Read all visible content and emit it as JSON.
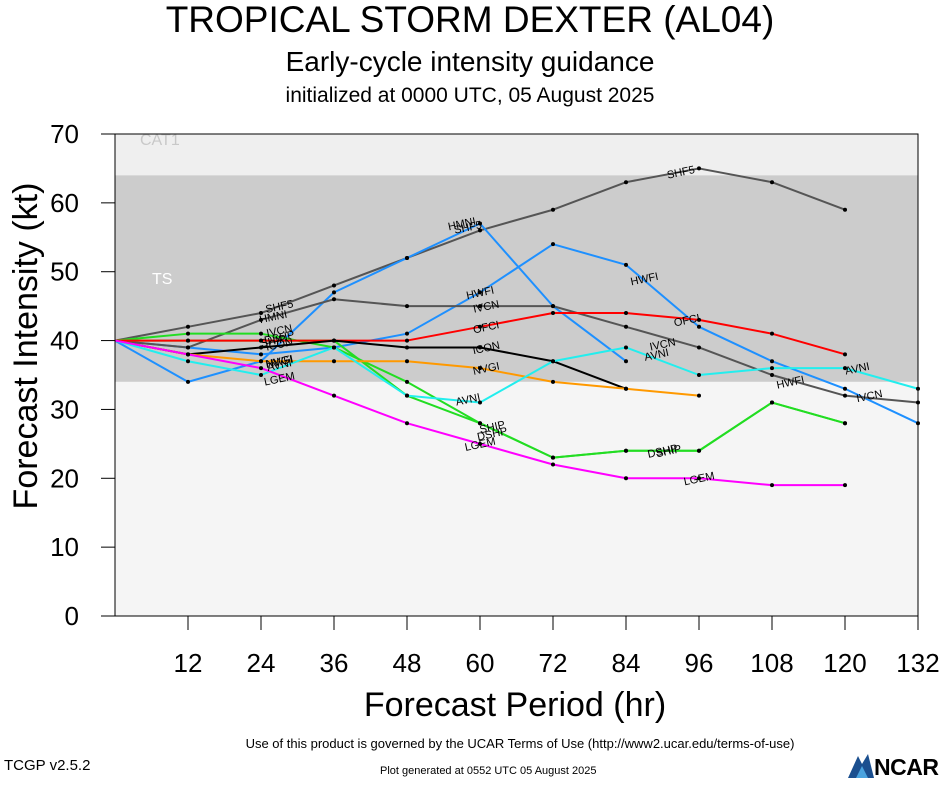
{
  "header": {
    "title": "TROPICAL STORM DEXTER (AL04)",
    "subtitle": "Early-cycle intensity guidance",
    "init": "initialized at 0000 UTC, 05 August 2025"
  },
  "footer": {
    "terms": "Use of this product is governed by the UCAR Terms of Use (http://www2.ucar.edu/terms-of-use)",
    "version": "TCGP v2.5.2",
    "generated": "Plot generated at 0552 UTC   05 August 2025",
    "logo_text": "NCAR"
  },
  "chart_data": {
    "type": "line",
    "title": "TROPICAL STORM DEXTER (AL04)",
    "xlabel": "Forecast Period (hr)",
    "ylabel": "Forecast Intensity (kt)",
    "xlim": [
      0,
      132
    ],
    "ylim": [
      0,
      70
    ],
    "xticks": [
      12,
      24,
      36,
      48,
      60,
      72,
      84,
      96,
      108,
      120,
      132
    ],
    "yticks": [
      0,
      10,
      20,
      30,
      40,
      50,
      60,
      70
    ],
    "grid": false,
    "bands": [
      {
        "label": "CAT1",
        "from": 64,
        "to": 70,
        "color": "#efefef"
      },
      {
        "label": "TS",
        "from": 34,
        "to": 64,
        "color": "#cccccc"
      },
      {
        "label": "",
        "from": 0,
        "to": 34,
        "color": "#f5f5f5"
      }
    ],
    "series": [
      {
        "name": "SHF5",
        "color": "#555555",
        "points": [
          [
            0,
            40
          ],
          [
            12,
            42
          ],
          [
            24,
            44
          ],
          [
            36,
            48
          ],
          [
            48,
            52
          ],
          [
            60,
            56
          ],
          [
            72,
            59
          ],
          [
            84,
            63
          ],
          [
            96,
            65
          ],
          [
            108,
            63
          ],
          [
            120,
            59
          ]
        ],
        "labels": [
          [
            27,
            45
          ],
          [
            58,
            56.5
          ],
          [
            93,
            64.5
          ]
        ]
      },
      {
        "name": "HMNI",
        "color": "#1e90ff",
        "points": [
          [
            0,
            40
          ],
          [
            12,
            34
          ],
          [
            24,
            37
          ],
          [
            36,
            47
          ],
          [
            48,
            52
          ],
          [
            60,
            57
          ],
          [
            72,
            45
          ],
          [
            84,
            37
          ]
        ],
        "labels": [
          [
            26,
            43.5
          ],
          [
            57,
            57
          ]
        ]
      },
      {
        "name": "HWFI",
        "color": "#1e90ff",
        "points": [
          [
            0,
            40
          ],
          [
            12,
            39
          ],
          [
            24,
            38
          ],
          [
            36,
            39
          ],
          [
            48,
            41
          ],
          [
            60,
            47
          ],
          [
            72,
            54
          ],
          [
            84,
            51
          ],
          [
            96,
            42
          ],
          [
            108,
            37
          ],
          [
            120,
            33
          ],
          [
            132,
            28
          ]
        ],
        "labels": [
          [
            27,
            37
          ],
          [
            60,
            47
          ],
          [
            87,
            49
          ],
          [
            111,
            34
          ]
        ]
      },
      {
        "name": "IVCN",
        "color": "#555555",
        "points": [
          [
            0,
            40
          ],
          [
            12,
            39
          ],
          [
            24,
            43
          ],
          [
            36,
            46
          ],
          [
            48,
            45
          ],
          [
            60,
            45
          ],
          [
            72,
            45
          ],
          [
            84,
            42
          ],
          [
            96,
            39
          ],
          [
            108,
            35
          ],
          [
            120,
            32
          ],
          [
            132,
            31
          ]
        ],
        "labels": [
          [
            27,
            41.5
          ],
          [
            61,
            45
          ],
          [
            90,
            39.5
          ],
          [
            124,
            32
          ]
        ]
      },
      {
        "name": "DSHP",
        "color": "#22dd22",
        "points": [
          [
            0,
            40
          ],
          [
            12,
            41
          ],
          [
            24,
            41
          ],
          [
            36,
            39
          ],
          [
            48,
            34
          ],
          [
            60,
            28
          ],
          [
            72,
            23
          ],
          [
            84,
            24
          ],
          [
            96,
            24
          ],
          [
            108,
            31
          ],
          [
            120,
            28
          ]
        ],
        "labels": [
          [
            27,
            40.5
          ],
          [
            62,
            26.5
          ],
          [
            90,
            24
          ]
        ]
      },
      {
        "name": "SHIP",
        "color": "#22dd22",
        "points": [
          [
            0,
            40
          ],
          [
            12,
            40
          ],
          [
            24,
            40
          ],
          [
            36,
            40
          ],
          [
            48,
            32
          ],
          [
            60,
            28
          ],
          [
            72,
            23
          ],
          [
            84,
            24
          ],
          [
            96,
            24
          ],
          [
            108,
            31
          ],
          [
            120,
            28
          ]
        ],
        "labels": [
          [
            26,
            40
          ],
          [
            62,
            27.5
          ],
          [
            91,
            24
          ]
        ]
      },
      {
        "name": "OFCI",
        "color": "#ff0000",
        "points": [
          [
            0,
            40
          ],
          [
            12,
            40
          ],
          [
            24,
            40
          ],
          [
            36,
            40
          ],
          [
            48,
            40
          ],
          [
            60,
            42
          ],
          [
            72,
            44
          ],
          [
            84,
            44
          ],
          [
            96,
            43
          ],
          [
            108,
            41
          ],
          [
            120,
            38
          ]
        ],
        "labels": [
          [
            61,
            42
          ],
          [
            94,
            43
          ]
        ]
      },
      {
        "name": "ICON",
        "color": "#000000",
        "points": [
          [
            0,
            40
          ],
          [
            12,
            38
          ],
          [
            24,
            39
          ],
          [
            36,
            40
          ],
          [
            48,
            39
          ],
          [
            60,
            39
          ],
          [
            72,
            37
          ],
          [
            84,
            33
          ]
        ],
        "labels": [
          [
            27,
            39.5
          ],
          [
            61,
            39
          ]
        ]
      },
      {
        "name": "NVGI",
        "color": "#ff9900",
        "points": [
          [
            0,
            40
          ],
          [
            12,
            38
          ],
          [
            24,
            37
          ],
          [
            36,
            37
          ],
          [
            48,
            37
          ],
          [
            60,
            36
          ],
          [
            72,
            34
          ],
          [
            84,
            33
          ],
          [
            96,
            32
          ]
        ],
        "labels": [
          [
            27,
            37
          ],
          [
            61,
            36
          ]
        ]
      },
      {
        "name": "AVNI",
        "color": "#22eeee",
        "points": [
          [
            0,
            40
          ],
          [
            12,
            37
          ],
          [
            24,
            35
          ],
          [
            36,
            39
          ],
          [
            48,
            32
          ],
          [
            60,
            31
          ],
          [
            72,
            37
          ],
          [
            84,
            39
          ],
          [
            96,
            35
          ],
          [
            108,
            36
          ],
          [
            120,
            36
          ],
          [
            132,
            33
          ]
        ],
        "labels": [
          [
            27,
            36.5
          ],
          [
            58,
            31.5
          ],
          [
            89,
            38
          ],
          [
            122,
            36
          ]
        ]
      },
      {
        "name": "LGEM",
        "color": "#ff00ff",
        "points": [
          [
            0,
            40
          ],
          [
            12,
            38
          ],
          [
            24,
            36
          ],
          [
            36,
            32
          ],
          [
            48,
            28
          ],
          [
            60,
            25
          ],
          [
            72,
            22
          ],
          [
            84,
            20
          ],
          [
            96,
            20
          ],
          [
            108,
            19
          ],
          [
            120,
            19
          ]
        ],
        "labels": [
          [
            27,
            34.5
          ],
          [
            60,
            25
          ],
          [
            96,
            20
          ]
        ]
      }
    ]
  }
}
